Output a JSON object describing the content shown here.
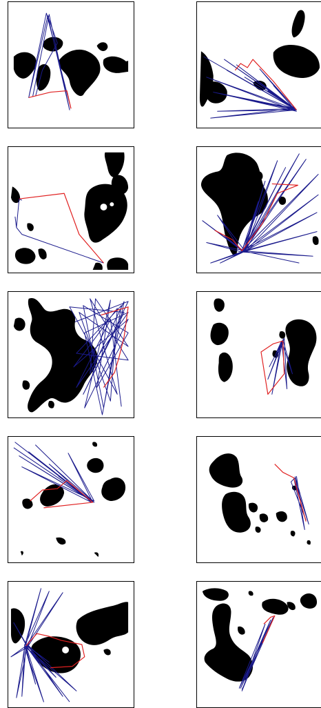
{
  "figure": {
    "panel_count": 10,
    "layout": {
      "rows": 5,
      "columns": 2
    },
    "colors": {
      "background": "#ffffff",
      "frame": "#000000",
      "obstacle": "#000000",
      "exploration": "#1a1a8c",
      "path": "#e02020"
    },
    "panels": [
      {
        "id": 1
      },
      {
        "id": 2
      },
      {
        "id": 3
      },
      {
        "id": 4
      },
      {
        "id": 5
      },
      {
        "id": 6
      },
      {
        "id": 7
      },
      {
        "id": 8
      },
      {
        "id": 9
      },
      {
        "id": 10
      }
    ]
  }
}
